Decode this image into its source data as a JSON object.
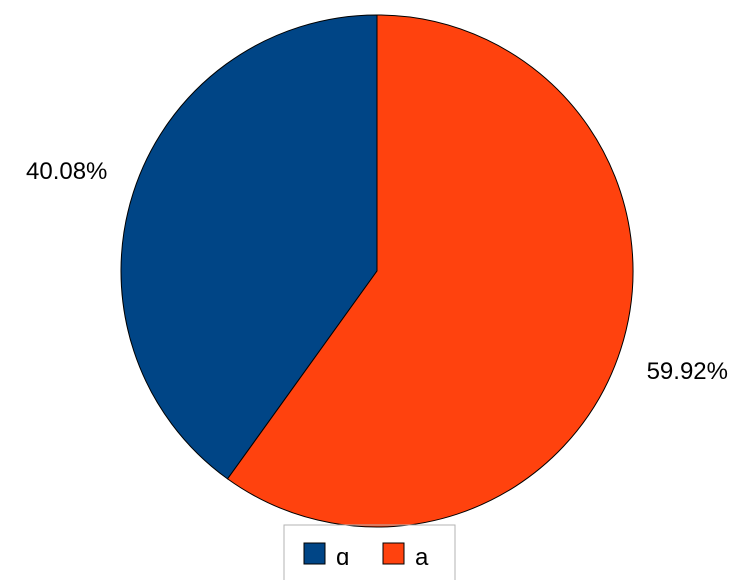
{
  "chart_data": {
    "type": "pie",
    "title": "",
    "slices": [
      {
        "label": "ɑ",
        "value": 40.08,
        "value_label": "40.08%",
        "color": "#004586"
      },
      {
        "label": "a",
        "value": 59.92,
        "value_label": "59.92%",
        "color": "#ff420e"
      }
    ],
    "start_angle_deg": 0,
    "direction": "counterclockwise-from-12-oclock for first slice",
    "legend": {
      "placement": "bottom-center"
    },
    "slice_outline_color": "#000000"
  }
}
